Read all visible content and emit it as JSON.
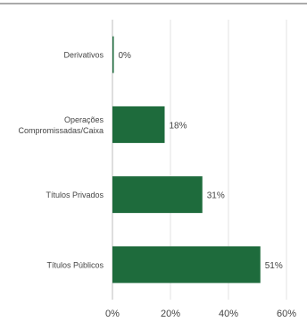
{
  "chart_data": {
    "type": "bar",
    "orientation": "horizontal",
    "categories": [
      "Derivativos",
      "Operações Compromissadas/Caixa",
      "Títulos Privados",
      "Títulos Públicos"
    ],
    "category_lines": [
      [
        "Derivativos"
      ],
      [
        "Operações",
        "Compromissadas/Caixa"
      ],
      [
        "Títulos Privados"
      ],
      [
        "Títulos Públicos"
      ]
    ],
    "values": [
      0,
      18,
      31,
      51
    ],
    "data_labels": [
      "0%",
      "18%",
      "31%",
      "51%"
    ],
    "xlim": [
      0,
      60
    ],
    "x_ticks": [
      0,
      20,
      40,
      60
    ],
    "x_tick_labels": [
      "0%",
      "20%",
      "40%",
      "60%"
    ],
    "grid": "vertical",
    "bar_color": "#1e6b3c",
    "title": "",
    "xlabel": "",
    "ylabel": ""
  }
}
